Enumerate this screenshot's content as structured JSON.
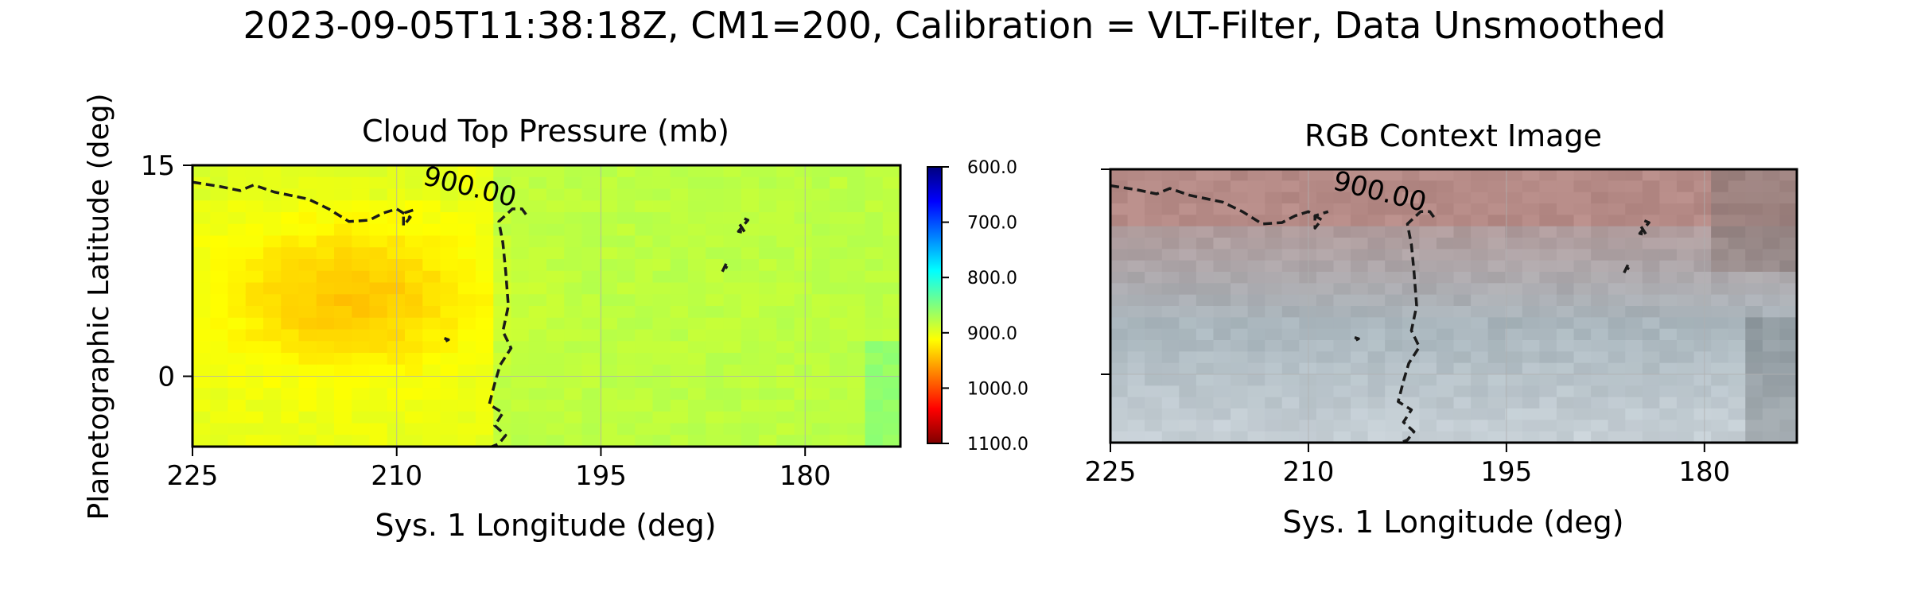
{
  "figure": {
    "suptitle": "2023-09-05T11:38:18Z, CM1=200, Calibration = VLT-Filter, Data Unsmoothed"
  },
  "colorbar": {
    "ticks": [
      600,
      700,
      800,
      900,
      1000,
      1100
    ],
    "tick_labels": [
      "600.0",
      "700.0",
      "800.0",
      "900.0",
      "1000.0",
      "1100.0"
    ],
    "range": [
      600,
      1100
    ],
    "colormap": "jet",
    "colors": [
      "#00007f",
      "#0000ff",
      "#007fff",
      "#00ffff",
      "#7fff7f",
      "#ffff00",
      "#ff7f00",
      "#ff0000",
      "#7f0000"
    ]
  },
  "chart_data": [
    {
      "type": "heatmap",
      "title": "Cloud Top Pressure (mb)",
      "xlabel": "Sys. 1 Longitude (deg)",
      "ylabel": "Planetographic Latitude (deg)",
      "xlim": [
        225,
        173
      ],
      "ylim": [
        -5,
        15
      ],
      "xticks": [
        225,
        210,
        195,
        180
      ],
      "xtick_labels": [
        "225",
        "210",
        "195",
        "180"
      ],
      "yticks": [
        15,
        0
      ],
      "ytick_labels": [
        "15",
        "0"
      ],
      "grid": true,
      "value_range_mb": [
        870,
        930
      ],
      "contour": {
        "level": 900,
        "label": "900.00",
        "style": "dashed",
        "color": "#1a1a1a"
      },
      "contour_path": [
        [
          225,
          13.8
        ],
        [
          223,
          13.5
        ],
        [
          221.5,
          13.2
        ],
        [
          220.5,
          13.6
        ],
        [
          219,
          13.1
        ],
        [
          216.5,
          12.6
        ],
        [
          215,
          11.9
        ],
        [
          213.5,
          11.0
        ],
        [
          212,
          11.1
        ],
        [
          211,
          11.6
        ],
        [
          210,
          11.9
        ],
        [
          209,
          11.3
        ],
        [
          209.5,
          10.7
        ],
        [
          209.5,
          11.6
        ],
        [
          208.5,
          11.9
        ]
      ],
      "contour_path_2": [
        [
          200.5,
          11.5
        ],
        [
          200.8,
          11.9
        ],
        [
          201.5,
          11.9
        ],
        [
          202.5,
          11.0
        ],
        [
          202.2,
          9.5
        ],
        [
          202.0,
          7.5
        ],
        [
          201.8,
          5.0
        ],
        [
          202.2,
          3.2
        ],
        [
          201.6,
          2.0
        ],
        [
          202.4,
          0.8
        ],
        [
          202.8,
          -0.5
        ],
        [
          203.2,
          -2.0
        ],
        [
          202.2,
          -2.6
        ],
        [
          202.8,
          -3.5
        ],
        [
          202.0,
          -4.2
        ],
        [
          202.5,
          -4.8
        ],
        [
          203.0,
          -5.0
        ]
      ],
      "small_contours": [
        [
          [
            184.8,
            10.8
          ],
          [
            184.4,
            10.2
          ],
          [
            184.9,
            10.3
          ],
          [
            184.2,
            11.1
          ],
          [
            184.7,
            11.3
          ]
        ],
        [
          [
            185.8,
            8.0
          ],
          [
            186.1,
            7.4
          ],
          [
            185.9,
            7.8
          ],
          [
            185.7,
            7.7
          ]
        ],
        [
          [
            206.5,
            2.7
          ],
          [
            206.2,
            2.6
          ],
          [
            206.4,
            2.5
          ]
        ]
      ],
      "contour_label_position": [
        205.5,
        13.3
      ]
    },
    {
      "type": "heatmap",
      "title": "RGB Context Image",
      "xlabel": "Sys. 1 Longitude (deg)",
      "ylabel": "",
      "xlim": [
        225,
        173
      ],
      "ylim": [
        -5,
        15
      ],
      "xticks": [
        225,
        210,
        195,
        180
      ],
      "xtick_labels": [
        "225",
        "210",
        "195",
        "180"
      ],
      "yticks": [
        15,
        0
      ],
      "ytick_labels": [
        "",
        ""
      ],
      "grid": true,
      "colors": {
        "north_band": "#b58a86",
        "mid_band": "#a9b6bd",
        "south_band": "#c9d2d8",
        "dark_corner": "#8a7a78"
      },
      "contour": {
        "level": 900,
        "label": "900.00",
        "style": "dashed",
        "color": "#1a1a1a"
      },
      "contour_label_position": [
        205.5,
        13.3
      ]
    }
  ]
}
